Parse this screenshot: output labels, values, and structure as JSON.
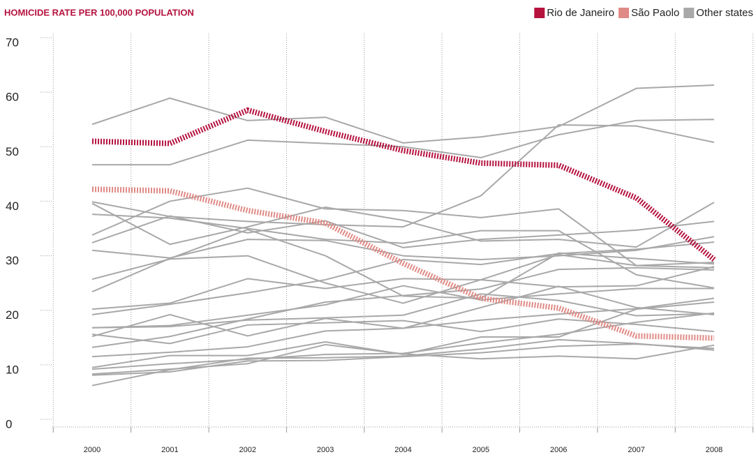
{
  "chart_data": {
    "type": "line",
    "title": "HOMICIDE RATE PER 100,000 POPULATION",
    "x": [
      2000,
      2001,
      2002,
      2003,
      2004,
      2005,
      2006,
      2007,
      2008
    ],
    "xlim": [
      2000,
      2008
    ],
    "ylim": [
      0,
      70
    ],
    "yticks": [
      0,
      10,
      20,
      30,
      40,
      50,
      60,
      70
    ],
    "series": [
      {
        "name": "Rio de Janeiro",
        "color": "#b5123e",
        "values": [
          51.0,
          50.6,
          56.7,
          52.8,
          49.3,
          47.0,
          46.6,
          40.6,
          29.3
        ]
      },
      {
        "name": "São Paolo",
        "color": "#e08a85",
        "values": [
          42.2,
          41.9,
          38.3,
          36.0,
          28.6,
          22.2,
          20.4,
          15.3,
          14.9
        ]
      },
      {
        "name": "Other states",
        "color": "#a8a8a8",
        "lines": [
          [
            54.1,
            58.9,
            54.8,
            55.4,
            50.7,
            51.8,
            53.7,
            60.7,
            61.3
          ],
          [
            46.7,
            46.7,
            51.2,
            50.6,
            50.0,
            48.0,
            52.2,
            54.8,
            55.0
          ],
          [
            39.9,
            37.2,
            36.3,
            35.7,
            35.3,
            41.0,
            54.0,
            53.8,
            50.8
          ],
          [
            33.8,
            40.0,
            42.4,
            38.6,
            38.3,
            37.0,
            38.6,
            28.2,
            27.8
          ],
          [
            39.6,
            32.1,
            35.3,
            38.9,
            36.5,
            32.7,
            33.0,
            31.6,
            39.8
          ],
          [
            37.6,
            36.9,
            35.0,
            33.0,
            32.3,
            34.6,
            34.6,
            26.5,
            24.1
          ],
          [
            32.4,
            37.3,
            34.2,
            36.4,
            31.5,
            33.0,
            33.8,
            34.7,
            36.3
          ],
          [
            31.0,
            29.6,
            33.0,
            32.8,
            30.0,
            29.3,
            30.0,
            31.0,
            33.5
          ],
          [
            25.7,
            29.4,
            30.0,
            25.0,
            21.3,
            25.6,
            24.3,
            24.5,
            28.0
          ],
          [
            23.4,
            29.5,
            34.8,
            30.0,
            22.6,
            22.2,
            30.5,
            29.5,
            28.5
          ],
          [
            20.2,
            21.3,
            25.8,
            24.0,
            25.8,
            25.6,
            30.2,
            28.2,
            28.8
          ],
          [
            19.2,
            21.1,
            23.2,
            25.6,
            29.3,
            28.4,
            30.4,
            31.2,
            32.5
          ],
          [
            16.8,
            17.2,
            19.1,
            21.0,
            24.5,
            21.9,
            23.0,
            24.0,
            24.0
          ],
          [
            16.8,
            17.0,
            18.2,
            18.6,
            19.1,
            23.0,
            21.8,
            19.0,
            19.4
          ],
          [
            15.2,
            19.2,
            15.3,
            18.5,
            16.7,
            20.5,
            24.4,
            20.5,
            19.2
          ],
          [
            15.6,
            13.9,
            17.3,
            17.7,
            18.1,
            16.1,
            18.4,
            17.4,
            16.1
          ],
          [
            13.2,
            15.2,
            18.4,
            21.5,
            22.7,
            23.9,
            27.5,
            27.8,
            27.4
          ],
          [
            11.5,
            12.3,
            13.3,
            16.2,
            16.7,
            18.2,
            19.3,
            20.3,
            22.2
          ],
          [
            9.5,
            11.7,
            11.7,
            14.2,
            11.9,
            15.1,
            15.1,
            20.2,
            21.5
          ],
          [
            9.2,
            10.2,
            11.0,
            11.9,
            12.1,
            14.0,
            15.6,
            17.8,
            19.5
          ],
          [
            8.3,
            9.2,
            10.2,
            13.7,
            12.0,
            11.1,
            11.6,
            11.1,
            13.6
          ],
          [
            6.2,
            9.1,
            11.2,
            11.3,
            11.6,
            12.9,
            14.6,
            13.9,
            12.7
          ],
          [
            8.1,
            8.7,
            10.7,
            10.8,
            11.5,
            12.2,
            13.4,
            13.8,
            13.0
          ]
        ]
      }
    ]
  }
}
